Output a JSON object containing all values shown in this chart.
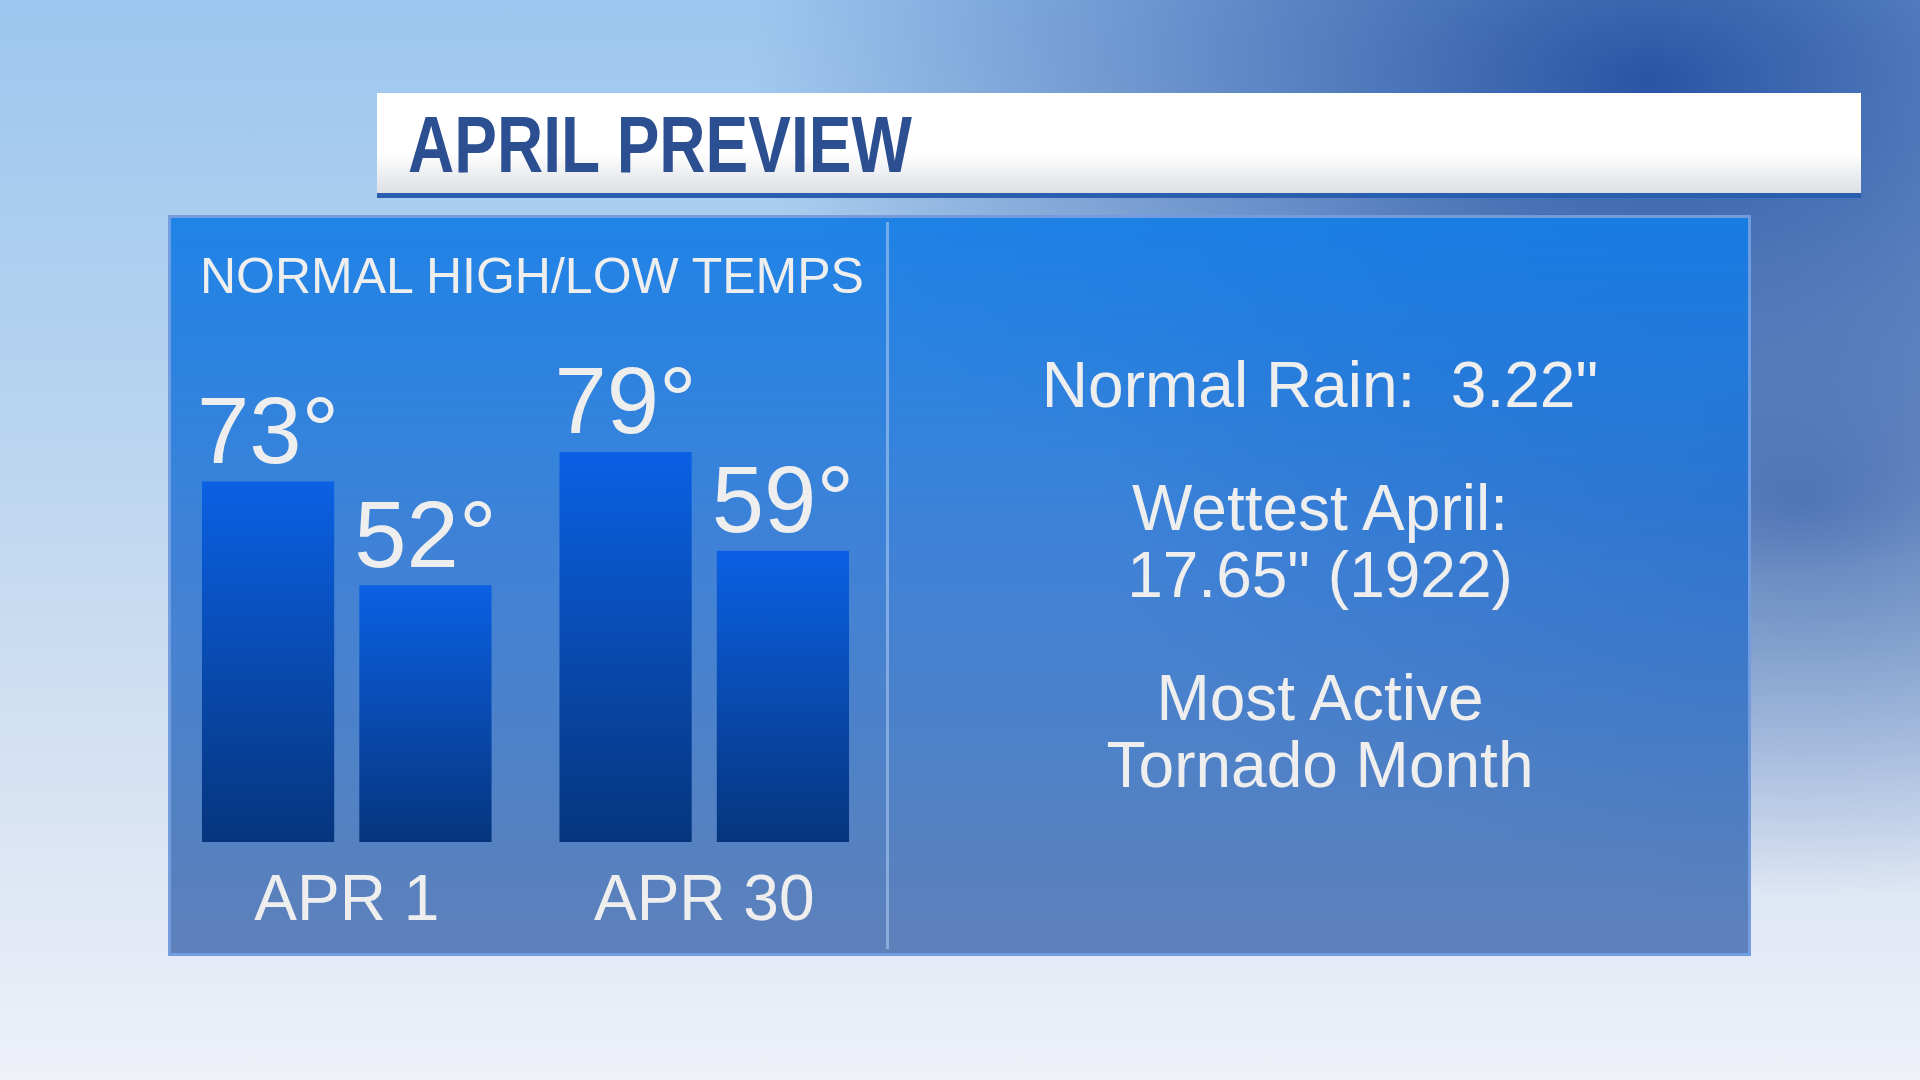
{
  "chart_data": {
    "type": "bar",
    "title": "APRIL PREVIEW",
    "subtitle": "NORMAL HIGH/LOW TEMPS",
    "categories": [
      "APR 1",
      "APR 30"
    ],
    "series": [
      {
        "color": "#0b60e4",
        "values": [
          73,
          79
        ],
        "value_labels": [
          "73°",
          "79°"
        ]
      },
      {
        "color": "#0b60e4",
        "values": [
          52,
          59
        ],
        "value_labels": [
          "52°",
          "59°"
        ]
      }
    ],
    "tick_labels": "x",
    "grid": false,
    "annotations": [
      "Normal Rain:  3.22\"",
      "Wettest April:\n17.65\" (1922)",
      "Most Active\nTornado Month"
    ]
  }
}
